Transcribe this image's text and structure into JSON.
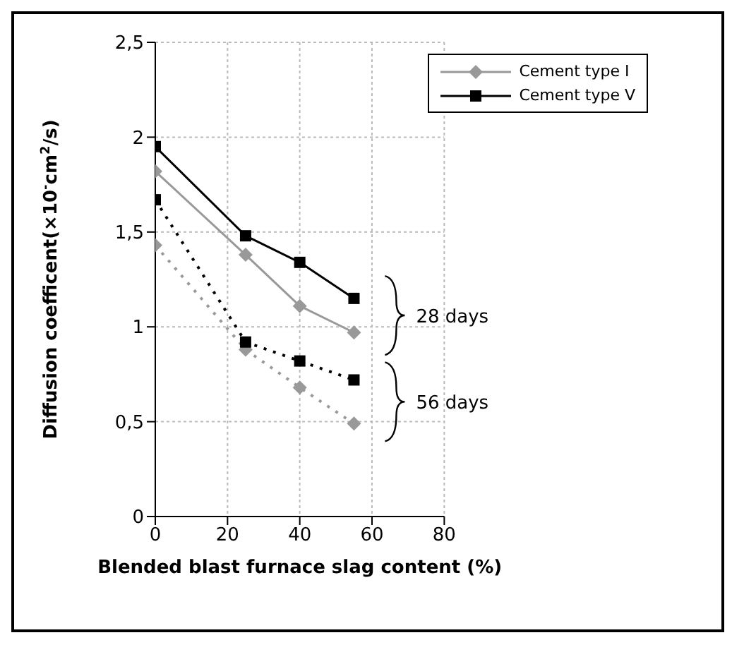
{
  "chart_data": {
    "type": "line",
    "xlabel": "Blended blast furnace slag content (%)",
    "ylabel": "Diffusion coefficent(×10$^{-}$cm$^{2}$/s)",
    "x": [
      0,
      25,
      40,
      55
    ],
    "series": [
      {
        "name": "Cement type  I",
        "color": "#999999",
        "marker": "diamond",
        "line_style": "solid",
        "values": [
          1.82,
          1.38,
          1.11,
          0.97
        ]
      },
      {
        "name": "Cement type  V",
        "color": "#000000",
        "marker": "square",
        "line_style": "solid",
        "values": [
          1.95,
          1.48,
          1.34,
          1.15
        ]
      },
      {
        "color": "#999999",
        "marker": "diamond",
        "line_style": "dotted",
        "values": [
          1.43,
          0.88,
          0.68,
          0.49
        ]
      },
      {
        "color": "#000000",
        "marker": "square",
        "line_style": "dotted",
        "values": [
          1.67,
          0.92,
          0.82,
          0.72
        ]
      }
    ],
    "xlim": [
      0,
      80
    ],
    "xticks": [
      0,
      20,
      40,
      60,
      80
    ],
    "ylim": [
      0,
      2.5
    ],
    "yticks": [
      0,
      {
        "value": 0.5,
        "label": "0,5"
      },
      1,
      {
        "value": 1.5,
        "label": "1,5"
      },
      2,
      {
        "value": 2.5,
        "label": "2,5"
      }
    ],
    "grid": true,
    "legend": "top right",
    "annotations": [
      "28 days",
      "56 days"
    ]
  }
}
